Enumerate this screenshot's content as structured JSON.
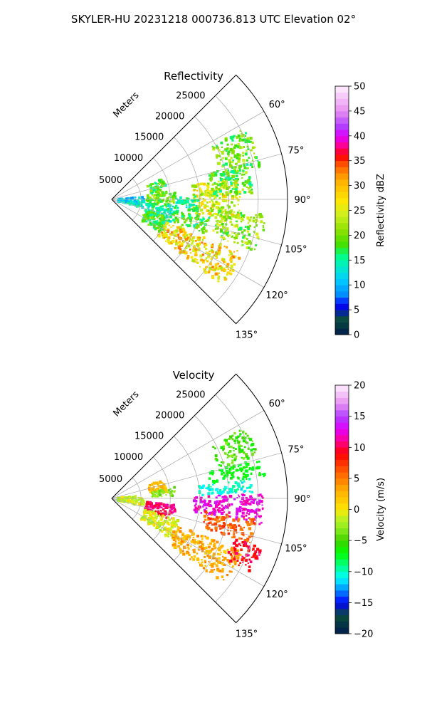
{
  "figure": {
    "suptitle": "SKYLER-HU  20231218  000736.813 UTC Elevation 02°"
  },
  "chart_data": [
    {
      "type": "heatmap",
      "subtype": "polar-sector-ppi",
      "title": "Reflectivity",
      "radial_axis_label": "Meters",
      "radial_ticks": [
        5000,
        10000,
        15000,
        20000,
        25000
      ],
      "radial_tick_labels": [
        "5000",
        "10000",
        "15000",
        "20000",
        "25000"
      ],
      "rlim": [
        0,
        30000
      ],
      "azimuth_range_deg": [
        45,
        135
      ],
      "angle_ticks_deg": [
        60,
        75,
        90,
        105,
        120,
        135
      ],
      "angle_tick_labels": [
        "60°",
        "75°",
        "90°",
        "105°",
        "120°",
        "135°"
      ],
      "grid": true,
      "colorbar": {
        "label": "Reflectivity dBZ",
        "min": 0,
        "max": 50,
        "ticks": [
          0,
          5,
          10,
          15,
          20,
          25,
          30,
          35,
          40,
          45,
          50
        ],
        "tick_labels": [
          "0",
          "5",
          "10",
          "15",
          "20",
          "25",
          "30",
          "35",
          "40",
          "45",
          "50"
        ],
        "stops": [
          [
            0,
            "#001a4d"
          ],
          [
            3,
            "#0a4d3a"
          ],
          [
            6,
            "#0000ff"
          ],
          [
            8,
            "#008cff"
          ],
          [
            11,
            "#00ccff"
          ],
          [
            14,
            "#00f0c0"
          ],
          [
            16,
            "#00ff80"
          ],
          [
            18,
            "#40e000"
          ],
          [
            21,
            "#8ce000"
          ],
          [
            24,
            "#ccf020"
          ],
          [
            27,
            "#ffe600"
          ],
          [
            31,
            "#ffb000"
          ],
          [
            34,
            "#ff6000"
          ],
          [
            36,
            "#ff0000"
          ],
          [
            38,
            "#ff0090"
          ],
          [
            40,
            "#e000ff"
          ],
          [
            42,
            "#b040ff"
          ],
          [
            45,
            "#e890f0"
          ],
          [
            50,
            "#fff0ff"
          ]
        ]
      },
      "echo_regions": [
        {
          "az": [
            85,
            105
          ],
          "r": [
            1000,
            5500
          ],
          "v": [
            8,
            16
          ]
        },
        {
          "az": [
            68,
            84
          ],
          "r": [
            6500,
            9500
          ],
          "v": [
            14,
            22
          ]
        },
        {
          "az": [
            84,
            96
          ],
          "r": [
            6000,
            11000
          ],
          "v": [
            16,
            24
          ]
        },
        {
          "az": [
            96,
            112
          ],
          "r": [
            6000,
            11000
          ],
          "v": [
            12,
            18
          ]
        },
        {
          "az": [
            108,
            125
          ],
          "r": [
            6000,
            10500
          ],
          "v": [
            14,
            22
          ]
        },
        {
          "az": [
            112,
            128
          ],
          "r": [
            10000,
            24000
          ],
          "v": [
            22,
            34
          ]
        },
        {
          "az": [
            80,
            100
          ],
          "r": [
            14000,
            22000
          ],
          "v": [
            20,
            30
          ]
        },
        {
          "az": [
            95,
            110
          ],
          "r": [
            18000,
            26500
          ],
          "v": [
            16,
            26
          ]
        },
        {
          "az": [
            62,
            78
          ],
          "r": [
            19000,
            26000
          ],
          "v": [
            16,
            24
          ]
        },
        {
          "az": [
            75,
            88
          ],
          "r": [
            17000,
            24000
          ],
          "v": [
            14,
            24
          ]
        },
        {
          "az": [
            88,
            98
          ],
          "r": [
            11000,
            15000
          ],
          "v": [
            12,
            18
          ]
        },
        {
          "az": [
            100,
            110
          ],
          "r": [
            11000,
            17000
          ],
          "v": [
            14,
            22
          ]
        }
      ]
    },
    {
      "type": "heatmap",
      "subtype": "polar-sector-ppi",
      "title": "Velocity",
      "radial_axis_label": "Meters",
      "radial_ticks": [
        5000,
        10000,
        15000,
        20000,
        25000
      ],
      "radial_tick_labels": [
        "5000",
        "10000",
        "15000",
        "20000",
        "25000"
      ],
      "rlim": [
        0,
        30000
      ],
      "azimuth_range_deg": [
        45,
        135
      ],
      "angle_ticks_deg": [
        60,
        75,
        90,
        105,
        120,
        135
      ],
      "angle_tick_labels": [
        "60°",
        "75°",
        "90°",
        "105°",
        "120°",
        "135°"
      ],
      "grid": true,
      "colorbar": {
        "label": "Velocity (m/s)",
        "min": -20,
        "max": 20,
        "ticks": [
          -20,
          -15,
          -10,
          -5,
          0,
          5,
          10,
          15,
          20
        ],
        "tick_labels": [
          "−20",
          "−15",
          "−10",
          "−5",
          "0",
          "5",
          "10",
          "15",
          "20"
        ],
        "stops": [
          [
            -20,
            "#001a4d"
          ],
          [
            -17,
            "#0a4d3a"
          ],
          [
            -15,
            "#0000ff"
          ],
          [
            -13,
            "#008cff"
          ],
          [
            -11,
            "#00ffff"
          ],
          [
            -9,
            "#00ff80"
          ],
          [
            -7,
            "#00ff00"
          ],
          [
            -5,
            "#40d000"
          ],
          [
            -3,
            "#90ee20"
          ],
          [
            -1,
            "#ccf020"
          ],
          [
            0,
            "#ffe600"
          ],
          [
            3,
            "#ffb000"
          ],
          [
            6,
            "#ff6000"
          ],
          [
            9,
            "#ff0000"
          ],
          [
            11,
            "#ff0090"
          ],
          [
            13,
            "#e000ff"
          ],
          [
            15,
            "#b040ff"
          ],
          [
            17,
            "#e890f0"
          ],
          [
            20,
            "#fff0ff"
          ]
        ]
      },
      "echo_regions": [
        {
          "az": [
            85,
            105
          ],
          "r": [
            1000,
            5500
          ],
          "v": [
            -3,
            1
          ]
        },
        {
          "az": [
            70,
            84
          ],
          "r": [
            6500,
            9500
          ],
          "v": [
            0,
            4
          ]
        },
        {
          "az": [
            80,
            88
          ],
          "r": [
            6500,
            11000
          ],
          "v": [
            -5,
            -2
          ]
        },
        {
          "az": [
            96,
            110
          ],
          "r": [
            6000,
            11000
          ],
          "v": [
            9,
            12
          ]
        },
        {
          "az": [
            108,
            125
          ],
          "r": [
            6000,
            12000
          ],
          "v": [
            -3,
            1
          ]
        },
        {
          "az": [
            112,
            128
          ],
          "r": [
            12000,
            24000
          ],
          "v": [
            1,
            5
          ]
        },
        {
          "az": [
            88,
            100
          ],
          "r": [
            14000,
            26000
          ],
          "v": [
            11,
            14
          ]
        },
        {
          "az": [
            82,
            88
          ],
          "r": [
            15000,
            24000
          ],
          "v": [
            -12,
            -9
          ]
        },
        {
          "az": [
            98,
            108
          ],
          "r": [
            16000,
            25000
          ],
          "v": [
            4,
            8
          ]
        },
        {
          "az": [
            108,
            118
          ],
          "r": [
            22000,
            27000
          ],
          "v": [
            8,
            11
          ]
        },
        {
          "az": [
            62,
            74
          ],
          "r": [
            19000,
            26000
          ],
          "v": [
            -7,
            -3
          ]
        },
        {
          "az": [
            75,
            82
          ],
          "r": [
            17000,
            26500
          ],
          "v": [
            -8,
            -6
          ]
        }
      ]
    }
  ]
}
